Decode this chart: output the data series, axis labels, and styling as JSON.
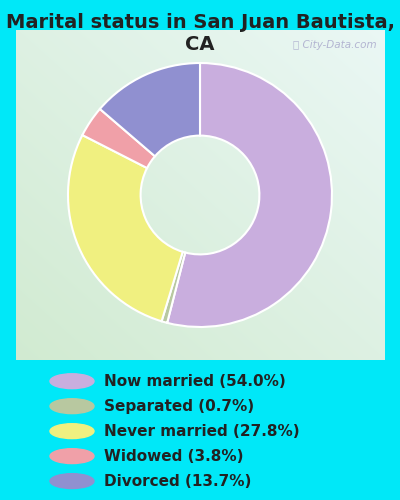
{
  "title": "Marital status in San Juan Bautista, CA",
  "slices": [
    54.0,
    0.7,
    27.8,
    3.8,
    13.7
  ],
  "labels": [
    "Now married (54.0%)",
    "Separated (0.7%)",
    "Never married (27.8%)",
    "Widowed (3.8%)",
    "Divorced (13.7%)"
  ],
  "colors": [
    "#c9aede",
    "#b8c8a0",
    "#f0f080",
    "#f0a0a8",
    "#9090d0"
  ],
  "chart_bg_left": "#d0ece0",
  "chart_bg_right": "#e8f0f8",
  "outer_bg": "#00e8f8",
  "title_fontsize": 14,
  "legend_fontsize": 11,
  "startangle": 90,
  "donut_width": 0.55
}
